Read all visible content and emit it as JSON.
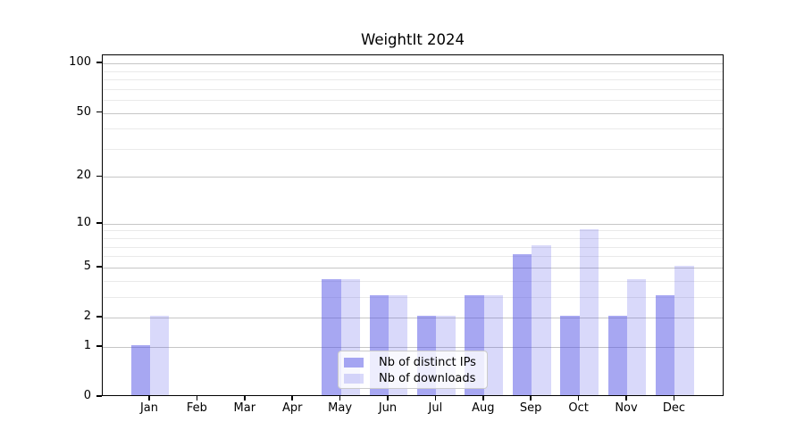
{
  "chart_data": {
    "type": "bar",
    "title": "WeightIt 2024",
    "categories": [
      "Jan 2024",
      "Feb 2024",
      "Mar 2024",
      "Apr 2024",
      "May 2024",
      "Jun 2024",
      "Jul 2024",
      "Aug 2024",
      "Sep 2024",
      "Oct 2024",
      "Nov 2024",
      "Dec 2024"
    ],
    "series": [
      {
        "name": "Nb of distinct IPs",
        "key": "distinct-ips",
        "color": "#a9a9f6",
        "fill": "rgba(80,80,230,0.5)",
        "values": [
          1,
          0,
          0,
          0,
          4,
          3,
          2,
          3,
          6,
          2,
          2,
          3
        ]
      },
      {
        "name": "Nb of downloads",
        "key": "downloads",
        "color": "#d9d9f8",
        "fill": "rgba(80,80,230,0.22)",
        "values": [
          2,
          0,
          0,
          0,
          4,
          3,
          2,
          3,
          7,
          9,
          4,
          5
        ]
      }
    ],
    "xlabel": "",
    "ylabel": "",
    "yscale": "log1p",
    "ylim": [
      0,
      100
    ],
    "y_ticks": [
      0,
      1,
      2,
      5,
      10,
      20,
      50,
      100
    ],
    "y_minor_gridlines": [
      3,
      4,
      6,
      7,
      8,
      9,
      30,
      40,
      60,
      70,
      80,
      90
    ],
    "grid": "horizontal",
    "legend_position": "lower-center-inside",
    "colors": {
      "major_grid": "#c6c6c6",
      "minor_grid": "#eaeaea",
      "spine": "#000000",
      "background": "#ffffff"
    }
  }
}
